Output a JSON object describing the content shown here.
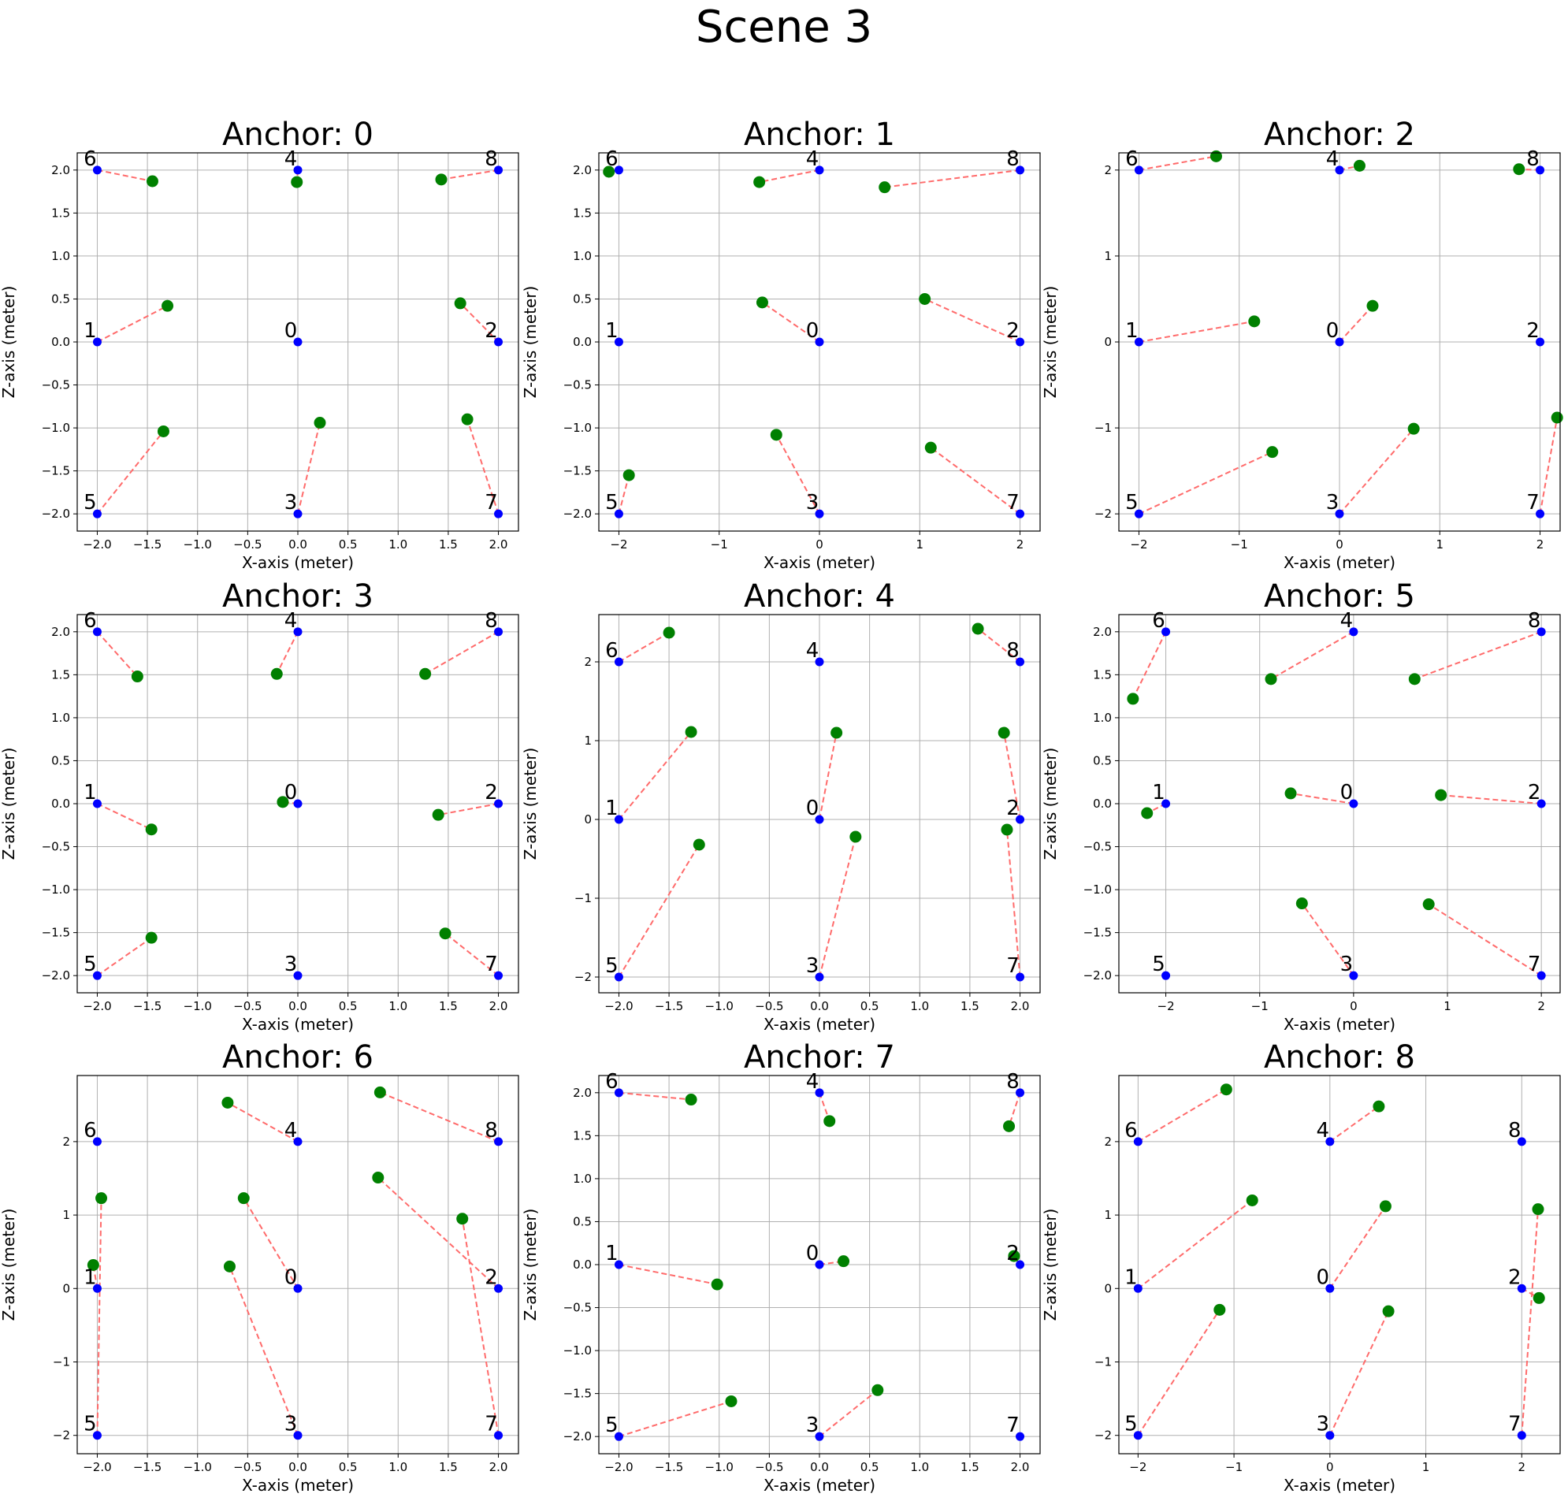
{
  "figure": {
    "title": "Scene 3"
  },
  "colors": {
    "anchor_point": "#0000ff",
    "measured_point": "#008000",
    "error_line": "#ff6b6b",
    "grid": "#b0b0b0"
  },
  "chart_data": [
    {
      "type": "scatter",
      "title": "Anchor: 0",
      "xlabel": "X-axis (meter)",
      "ylabel": "Z-axis (meter)",
      "grid": true,
      "xlim": [
        -2.2,
        2.2
      ],
      "ylim": [
        -2.2,
        2.2
      ],
      "xticks": [
        -2.0,
        -1.5,
        -1.0,
        -0.5,
        0.0,
        0.5,
        1.0,
        1.5,
        2.0
      ],
      "xtick_labels": [
        "−2.0",
        "−1.5",
        "−1.0",
        "−0.5",
        "0.0",
        "0.5",
        "1.0",
        "1.5",
        "2.0"
      ],
      "yticks": [
        -2.0,
        -1.5,
        -1.0,
        -0.5,
        0.0,
        0.5,
        1.0,
        1.5,
        2.0
      ],
      "ytick_labels": [
        "−2.0",
        "−1.5",
        "−1.0",
        "−0.5",
        "0.0",
        "0.5",
        "1.0",
        "1.5",
        "2.0"
      ],
      "points": [
        {
          "label": "0",
          "x": 0,
          "y": 0
        },
        {
          "label": "1",
          "x": -2,
          "y": 0,
          "mx": -1.3,
          "my": 0.42
        },
        {
          "label": "2",
          "x": 2,
          "y": 0,
          "mx": 1.62,
          "my": 0.45
        },
        {
          "label": "3",
          "x": 0,
          "y": -2,
          "mx": 0.22,
          "my": -0.94
        },
        {
          "label": "4",
          "x": 0,
          "y": 2,
          "mx": -0.01,
          "my": 1.86
        },
        {
          "label": "5",
          "x": -2,
          "y": -2,
          "mx": -1.34,
          "my": -1.04
        },
        {
          "label": "6",
          "x": -2,
          "y": 2,
          "mx": -1.45,
          "my": 1.87
        },
        {
          "label": "7",
          "x": 2,
          "y": -2,
          "mx": 1.69,
          "my": -0.9
        },
        {
          "label": "8",
          "x": 2,
          "y": 2,
          "mx": 1.43,
          "my": 1.89
        }
      ]
    },
    {
      "type": "scatter",
      "title": "Anchor: 1",
      "xlabel": "X-axis (meter)",
      "ylabel": "Z-axis (meter)",
      "grid": true,
      "xlim": [
        -2.2,
        2.2
      ],
      "ylim": [
        -2.2,
        2.2
      ],
      "xticks": [
        -2,
        -1,
        0,
        1,
        2
      ],
      "xtick_labels": [
        "−2",
        "−1",
        "0",
        "1",
        "2"
      ],
      "yticks": [
        -2.0,
        -1.5,
        -1.0,
        -0.5,
        0.0,
        0.5,
        1.0,
        1.5,
        2.0
      ],
      "ytick_labels": [
        "−2.0",
        "−1.5",
        "−1.0",
        "−0.5",
        "0.0",
        "0.5",
        "1.0",
        "1.5",
        "2.0"
      ],
      "points": [
        {
          "label": "0",
          "x": 0,
          "y": 0,
          "mx": -0.57,
          "my": 0.46
        },
        {
          "label": "1",
          "x": -2,
          "y": 0
        },
        {
          "label": "2",
          "x": 2,
          "y": 0,
          "mx": 1.05,
          "my": 0.5
        },
        {
          "label": "3",
          "x": 0,
          "y": -2,
          "mx": -0.43,
          "my": -1.08
        },
        {
          "label": "4",
          "x": 0,
          "y": 2,
          "mx": -0.6,
          "my": 1.86
        },
        {
          "label": "5",
          "x": -2,
          "y": -2,
          "mx": -1.9,
          "my": -1.55
        },
        {
          "label": "6",
          "x": -2,
          "y": 2,
          "mx": -2.1,
          "my": 1.98
        },
        {
          "label": "7",
          "x": 2,
          "y": -2,
          "mx": 1.11,
          "my": -1.23
        },
        {
          "label": "8",
          "x": 2,
          "y": 2,
          "mx": 0.65,
          "my": 1.8
        }
      ]
    },
    {
      "type": "scatter",
      "title": "Anchor: 2",
      "xlabel": "X-axis (meter)",
      "ylabel": "Z-axis (meter)",
      "grid": true,
      "xlim": [
        -2.2,
        2.2
      ],
      "ylim": [
        -2.2,
        2.2
      ],
      "xticks": [
        -2,
        -1,
        0,
        1,
        2
      ],
      "xtick_labels": [
        "−2",
        "−1",
        "0",
        "1",
        "2"
      ],
      "yticks": [
        -2,
        -1,
        0,
        1,
        2
      ],
      "ytick_labels": [
        "−2",
        "−1",
        "0",
        "1",
        "2"
      ],
      "points": [
        {
          "label": "0",
          "x": 0,
          "y": 0,
          "mx": 0.33,
          "my": 0.42
        },
        {
          "label": "1",
          "x": -2,
          "y": 0,
          "mx": -0.85,
          "my": 0.24
        },
        {
          "label": "2",
          "x": 2,
          "y": 0
        },
        {
          "label": "3",
          "x": 0,
          "y": -2,
          "mx": 0.74,
          "my": -1.01
        },
        {
          "label": "4",
          "x": 0,
          "y": 2,
          "mx": 0.2,
          "my": 2.05
        },
        {
          "label": "5",
          "x": -2,
          "y": -2,
          "mx": -0.67,
          "my": -1.28
        },
        {
          "label": "6",
          "x": -2,
          "y": 2,
          "mx": -1.23,
          "my": 2.16
        },
        {
          "label": "7",
          "x": 2,
          "y": -2,
          "mx": 2.17,
          "my": -0.88
        },
        {
          "label": "8",
          "x": 2,
          "y": 2,
          "mx": 1.79,
          "my": 2.01
        }
      ]
    },
    {
      "type": "scatter",
      "title": "Anchor: 3",
      "xlabel": "X-axis (meter)",
      "ylabel": "Z-axis (meter)",
      "grid": true,
      "xlim": [
        -2.2,
        2.2
      ],
      "ylim": [
        -2.2,
        2.2
      ],
      "xticks": [
        -2.0,
        -1.5,
        -1.0,
        -0.5,
        0.0,
        0.5,
        1.0,
        1.5,
        2.0
      ],
      "xtick_labels": [
        "−2.0",
        "−1.5",
        "−1.0",
        "−0.5",
        "0.0",
        "0.5",
        "1.0",
        "1.5",
        "2.0"
      ],
      "yticks": [
        -2.0,
        -1.5,
        -1.0,
        -0.5,
        0.0,
        0.5,
        1.0,
        1.5,
        2.0
      ],
      "ytick_labels": [
        "−2.0",
        "−1.5",
        "−1.0",
        "−0.5",
        "0.0",
        "0.5",
        "1.0",
        "1.5",
        "2.0"
      ],
      "points": [
        {
          "label": "0",
          "x": 0,
          "y": 0,
          "mx": -0.15,
          "my": 0.02
        },
        {
          "label": "1",
          "x": -2,
          "y": 0,
          "mx": -1.46,
          "my": -0.3
        },
        {
          "label": "2",
          "x": 2,
          "y": 0,
          "mx": 1.4,
          "my": -0.13
        },
        {
          "label": "3",
          "x": 0,
          "y": -2
        },
        {
          "label": "4",
          "x": 0,
          "y": 2,
          "mx": -0.21,
          "my": 1.51
        },
        {
          "label": "5",
          "x": -2,
          "y": -2,
          "mx": -1.46,
          "my": -1.56
        },
        {
          "label": "6",
          "x": -2,
          "y": 2,
          "mx": -1.6,
          "my": 1.48
        },
        {
          "label": "7",
          "x": 2,
          "y": -2,
          "mx": 1.47,
          "my": -1.51
        },
        {
          "label": "8",
          "x": 2,
          "y": 2,
          "mx": 1.27,
          "my": 1.51
        }
      ]
    },
    {
      "type": "scatter",
      "title": "Anchor: 4",
      "xlabel": "X-axis (meter)",
      "ylabel": "Z-axis (meter)",
      "grid": true,
      "xlim": [
        -2.2,
        2.2
      ],
      "ylim": [
        -2.2,
        2.6
      ],
      "xticks": [
        -2.0,
        -1.5,
        -1.0,
        -0.5,
        0.0,
        0.5,
        1.0,
        1.5,
        2.0
      ],
      "xtick_labels": [
        "−2.0",
        "−1.5",
        "−1.0",
        "−0.5",
        "0.0",
        "0.5",
        "1.0",
        "1.5",
        "2.0"
      ],
      "yticks": [
        -2,
        -1,
        0,
        1,
        2
      ],
      "ytick_labels": [
        "−2",
        "−1",
        "0",
        "1",
        "2"
      ],
      "points": [
        {
          "label": "0",
          "x": 0,
          "y": 0,
          "mx": 0.17,
          "my": 1.1
        },
        {
          "label": "1",
          "x": -2,
          "y": 0,
          "mx": -1.28,
          "my": 1.11
        },
        {
          "label": "2",
          "x": 2,
          "y": 0,
          "mx": 1.84,
          "my": 1.1
        },
        {
          "label": "3",
          "x": 0,
          "y": -2,
          "mx": 0.36,
          "my": -0.22
        },
        {
          "label": "4",
          "x": 0,
          "y": 2
        },
        {
          "label": "5",
          "x": -2,
          "y": -2,
          "mx": -1.2,
          "my": -0.32
        },
        {
          "label": "6",
          "x": -2,
          "y": 2,
          "mx": -1.5,
          "my": 2.37
        },
        {
          "label": "7",
          "x": 2,
          "y": -2,
          "mx": 1.87,
          "my": -0.13
        },
        {
          "label": "8",
          "x": 2,
          "y": 2,
          "mx": 1.58,
          "my": 2.42
        }
      ]
    },
    {
      "type": "scatter",
      "title": "Anchor: 5",
      "xlabel": "X-axis (meter)",
      "ylabel": "Z-axis (meter)",
      "grid": true,
      "xlim": [
        -2.5,
        2.2
      ],
      "ylim": [
        -2.2,
        2.2
      ],
      "xticks": [
        -2,
        -1,
        0,
        1,
        2
      ],
      "xtick_labels": [
        "−2",
        "−1",
        "0",
        "1",
        "2"
      ],
      "yticks": [
        -2.0,
        -1.5,
        -1.0,
        -0.5,
        0.0,
        0.5,
        1.0,
        1.5,
        2.0
      ],
      "ytick_labels": [
        "−2.0",
        "−1.5",
        "−1.0",
        "−0.5",
        "0.0",
        "0.5",
        "1.0",
        "1.5",
        "2.0"
      ],
      "points": [
        {
          "label": "0",
          "x": 0,
          "y": 0,
          "mx": -0.67,
          "my": 0.12
        },
        {
          "label": "1",
          "x": -2,
          "y": 0,
          "mx": -2.2,
          "my": -0.11
        },
        {
          "label": "2",
          "x": 2,
          "y": 0,
          "mx": 0.93,
          "my": 0.1
        },
        {
          "label": "3",
          "x": 0,
          "y": -2,
          "mx": -0.55,
          "my": -1.16
        },
        {
          "label": "4",
          "x": 0,
          "y": 2,
          "mx": -0.88,
          "my": 1.45
        },
        {
          "label": "5",
          "x": -2,
          "y": -2
        },
        {
          "label": "6",
          "x": -2,
          "y": 2,
          "mx": -2.35,
          "my": 1.22
        },
        {
          "label": "7",
          "x": 2,
          "y": -2,
          "mx": 0.8,
          "my": -1.17
        },
        {
          "label": "8",
          "x": 2,
          "y": 2,
          "mx": 0.65,
          "my": 1.45
        }
      ]
    },
    {
      "type": "scatter",
      "title": "Anchor: 6",
      "xlabel": "X-axis (meter)",
      "ylabel": "Z-axis (meter)",
      "grid": true,
      "xlim": [
        -2.2,
        2.2
      ],
      "ylim": [
        -2.25,
        2.9
      ],
      "xticks": [
        -2.0,
        -1.5,
        -1.0,
        -0.5,
        0.0,
        0.5,
        1.0,
        1.5,
        2.0
      ],
      "xtick_labels": [
        "−2.0",
        "−1.5",
        "−1.0",
        "−0.5",
        "0.0",
        "0.5",
        "1.0",
        "1.5",
        "2.0"
      ],
      "yticks": [
        -2,
        -1,
        0,
        1,
        2
      ],
      "ytick_labels": [
        "−2",
        "−1",
        "0",
        "1",
        "2"
      ],
      "points": [
        {
          "label": "0",
          "x": 0,
          "y": 0,
          "mx": -0.54,
          "my": 1.23
        },
        {
          "label": "1",
          "x": -2,
          "y": 0,
          "mx": -2.04,
          "my": 0.32
        },
        {
          "label": "2",
          "x": 2,
          "y": 0,
          "mx": 0.8,
          "my": 1.51
        },
        {
          "label": "3",
          "x": 0,
          "y": -2,
          "mx": -0.68,
          "my": 0.3
        },
        {
          "label": "4",
          "x": 0,
          "y": 2,
          "mx": -0.7,
          "my": 2.53
        },
        {
          "label": "5",
          "x": -2,
          "y": -2,
          "mx": -1.96,
          "my": 1.23
        },
        {
          "label": "6",
          "x": -2,
          "y": 2
        },
        {
          "label": "7",
          "x": 2,
          "y": -2,
          "mx": 1.64,
          "my": 0.95
        },
        {
          "label": "8",
          "x": 2,
          "y": 2,
          "mx": 0.82,
          "my": 2.67
        }
      ]
    },
    {
      "type": "scatter",
      "title": "Anchor: 7",
      "xlabel": "X-axis (meter)",
      "ylabel": "Z-axis (meter)",
      "grid": true,
      "xlim": [
        -2.2,
        2.2
      ],
      "ylim": [
        -2.2,
        2.2
      ],
      "xticks": [
        -2.0,
        -1.5,
        -1.0,
        -0.5,
        0.0,
        0.5,
        1.0,
        1.5,
        2.0
      ],
      "xtick_labels": [
        "−2.0",
        "−1.5",
        "−1.0",
        "−0.5",
        "0.0",
        "0.5",
        "1.0",
        "1.5",
        "2.0"
      ],
      "yticks": [
        -2.0,
        -1.5,
        -1.0,
        -0.5,
        0.0,
        0.5,
        1.0,
        1.5,
        2.0
      ],
      "ytick_labels": [
        "−2.0",
        "−1.5",
        "−1.0",
        "−0.5",
        "0.0",
        "0.5",
        "1.0",
        "1.5",
        "2.0"
      ],
      "points": [
        {
          "label": "0",
          "x": 0,
          "y": 0,
          "mx": 0.24,
          "my": 0.04
        },
        {
          "label": "1",
          "x": -2,
          "y": 0,
          "mx": -1.02,
          "my": -0.23
        },
        {
          "label": "2",
          "x": 2,
          "y": 0,
          "mx": 1.94,
          "my": 0.1
        },
        {
          "label": "3",
          "x": 0,
          "y": -2,
          "mx": 0.58,
          "my": -1.46
        },
        {
          "label": "4",
          "x": 0,
          "y": 2,
          "mx": 0.1,
          "my": 1.67
        },
        {
          "label": "5",
          "x": -2,
          "y": -2,
          "mx": -0.88,
          "my": -1.59
        },
        {
          "label": "6",
          "x": -2,
          "y": 2,
          "mx": -1.28,
          "my": 1.92
        },
        {
          "label": "7",
          "x": 2,
          "y": -2
        },
        {
          "label": "8",
          "x": 2,
          "y": 2,
          "mx": 1.89,
          "my": 1.61
        }
      ]
    },
    {
      "type": "scatter",
      "title": "Anchor: 8",
      "xlabel": "X-axis (meter)",
      "ylabel": "Z-axis (meter)",
      "grid": true,
      "xlim": [
        -2.2,
        2.4
      ],
      "ylim": [
        -2.25,
        2.9
      ],
      "xticks": [
        -2,
        -1,
        0,
        1,
        2
      ],
      "xtick_labels": [
        "−2",
        "−1",
        "0",
        "1",
        "2"
      ],
      "yticks": [
        -2,
        -1,
        0,
        1,
        2
      ],
      "ytick_labels": [
        "−2",
        "−1",
        "0",
        "1",
        "2"
      ],
      "points": [
        {
          "label": "0",
          "x": 0,
          "y": 0,
          "mx": 0.58,
          "my": 1.12
        },
        {
          "label": "1",
          "x": -2,
          "y": 0,
          "mx": -0.81,
          "my": 1.2
        },
        {
          "label": "2",
          "x": 2,
          "y": 0,
          "mx": 2.18,
          "my": -0.13
        },
        {
          "label": "3",
          "x": 0,
          "y": -2,
          "mx": 0.61,
          "my": -0.31
        },
        {
          "label": "4",
          "x": 0,
          "y": 2,
          "mx": 0.51,
          "my": 2.48
        },
        {
          "label": "5",
          "x": -2,
          "y": -2,
          "mx": -1.15,
          "my": -0.29
        },
        {
          "label": "6",
          "x": -2,
          "y": 2,
          "mx": -1.08,
          "my": 2.71
        },
        {
          "label": "7",
          "x": 2,
          "y": -2,
          "mx": 2.17,
          "my": 1.08
        },
        {
          "label": "8",
          "x": 2,
          "y": 2
        }
      ]
    }
  ]
}
